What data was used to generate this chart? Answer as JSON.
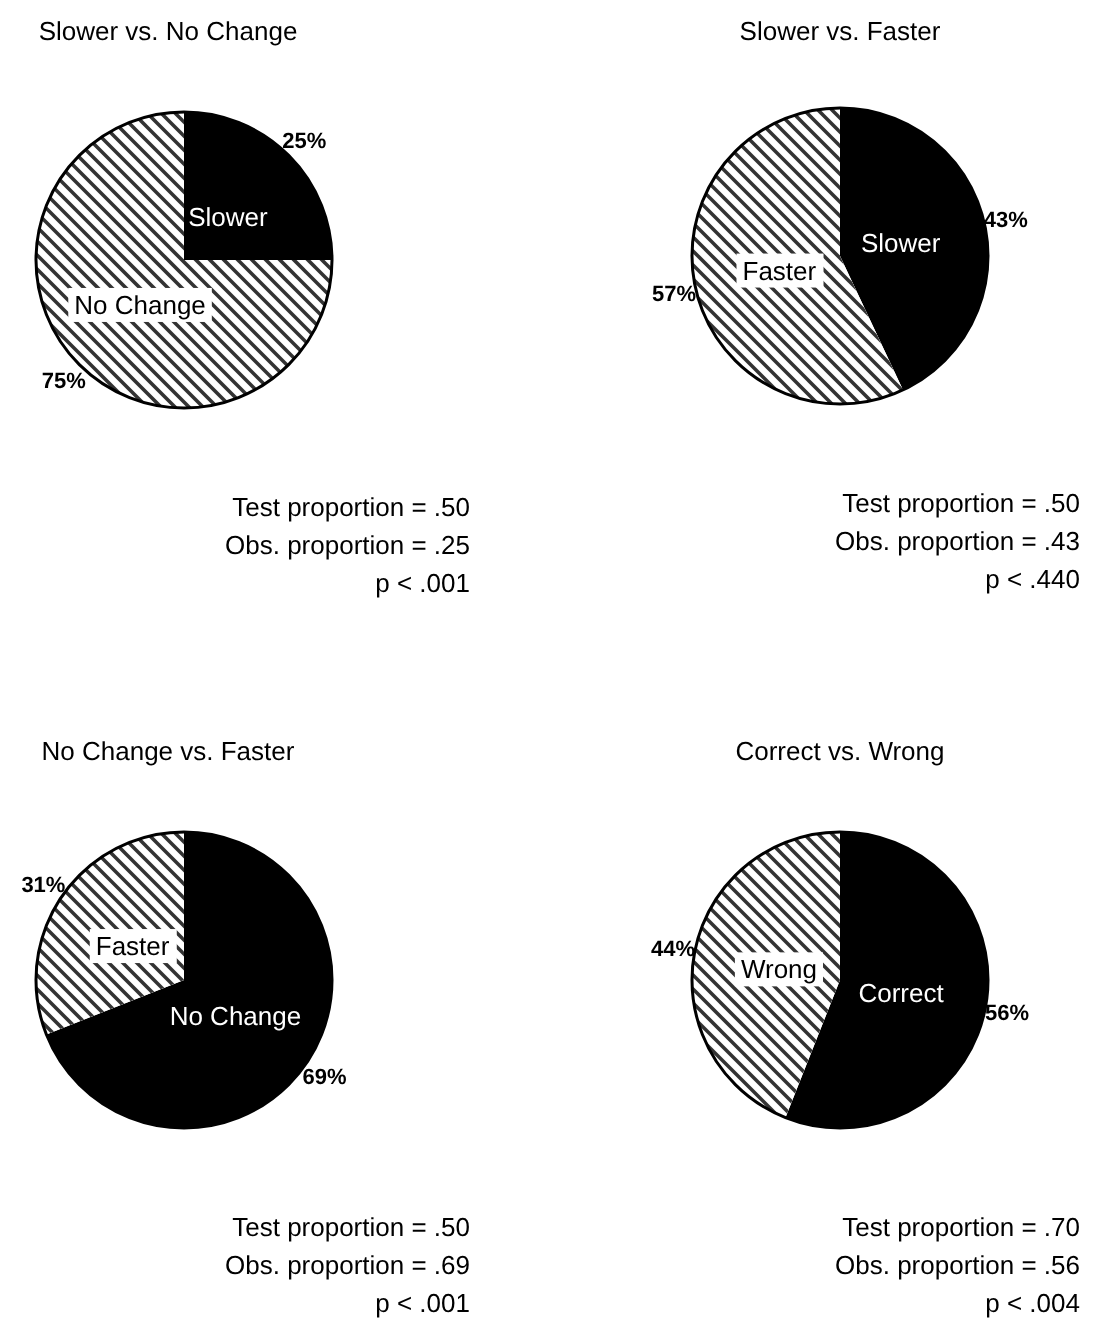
{
  "chart_data": [
    {
      "type": "pie",
      "title": "Slower vs. No Change",
      "categories": [
        "Slower",
        "No Change"
      ],
      "values": [
        25,
        75
      ],
      "colors": [
        "#000000",
        "#ffffff"
      ],
      "value_labels": [
        "25%",
        "75%"
      ],
      "annotations": [
        "Test proportion = .50",
        "Obs. proportion = .25",
        "p < .001"
      ]
    },
    {
      "type": "pie",
      "title": "Slower vs. Faster",
      "categories": [
        "Slower",
        "Faster"
      ],
      "values": [
        43,
        57
      ],
      "colors": [
        "#000000",
        "#ffffff"
      ],
      "value_labels": [
        "43%",
        "57%"
      ],
      "annotations": [
        "Test proportion = .50",
        "Obs. proportion = .43",
        "p < .440"
      ]
    },
    {
      "type": "pie",
      "title": "No Change vs. Faster",
      "categories": [
        "No Change",
        "Faster"
      ],
      "values": [
        69,
        31
      ],
      "colors": [
        "#000000",
        "#ffffff"
      ],
      "value_labels": [
        "69%",
        "31%"
      ],
      "annotations": [
        "Test proportion = .50",
        "Obs. proportion = .69",
        "p < .001"
      ]
    },
    {
      "type": "pie",
      "title": "Correct vs. Wrong",
      "categories": [
        "Correct",
        "Wrong"
      ],
      "values": [
        56,
        44
      ],
      "colors": [
        "#000000",
        "#ffffff"
      ],
      "value_labels": [
        "56%",
        "44%"
      ],
      "annotations": [
        "Test proportion = .70",
        "Obs. proportion = .56",
        "p < .004"
      ]
    }
  ]
}
